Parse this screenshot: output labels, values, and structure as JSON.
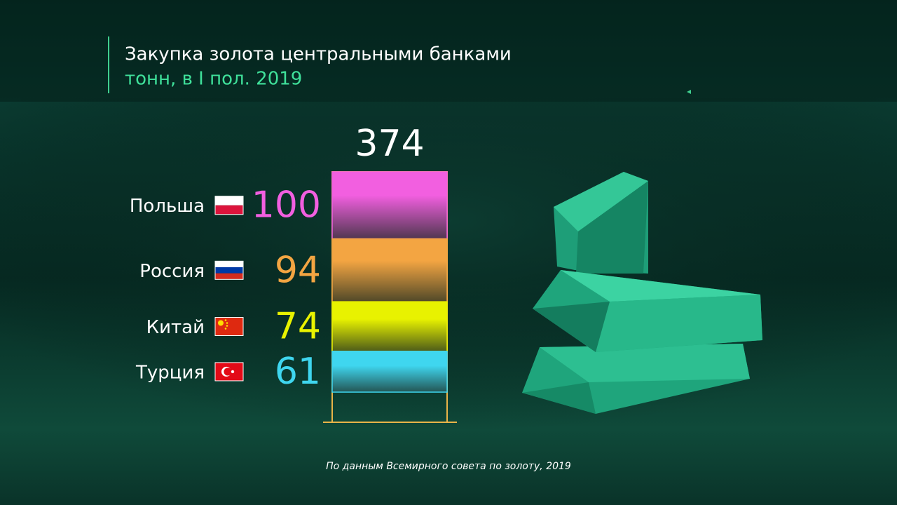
{
  "chart_data": {
    "type": "stacked-bar",
    "title": "Закупка золота центральными банками",
    "subtitle": "тонн, в I пол. 2019",
    "total": 374,
    "series": [
      {
        "name": "Польша",
        "color": "#f25fe0",
        "values": [
          100
        ]
      },
      {
        "name": "Россия",
        "color": "#f3a542",
        "values": [
          94
        ]
      },
      {
        "name": "Китай",
        "color": "#e8f200",
        "values": [
          74
        ]
      },
      {
        "name": "Турция",
        "color": "#3fd6ef",
        "values": [
          61
        ]
      }
    ],
    "source": "По данным Всемирного совета по золоту, 2019"
  }
}
